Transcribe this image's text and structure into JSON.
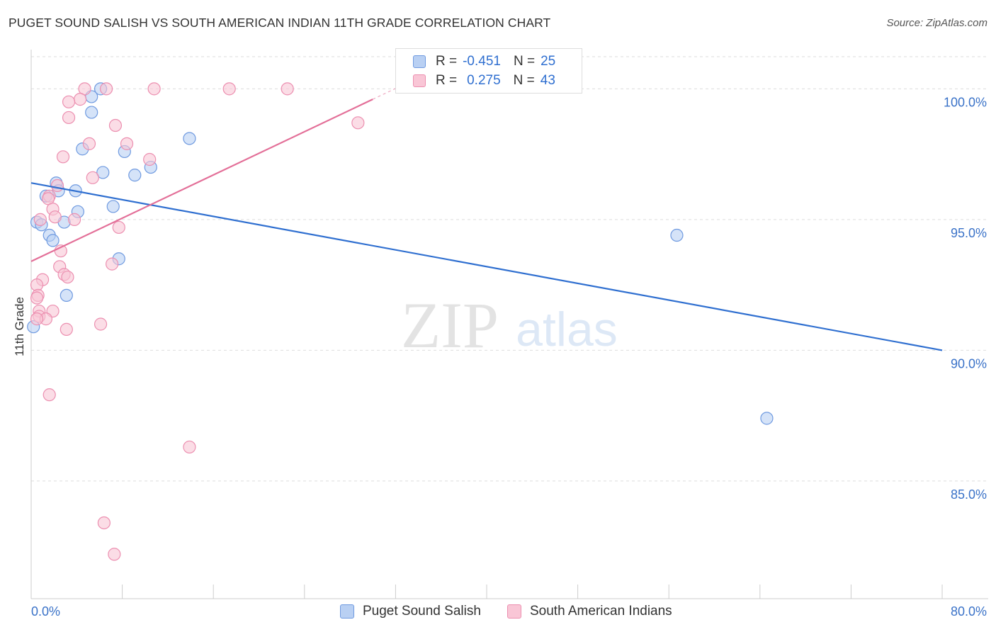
{
  "title": "PUGET SOUND SALISH VS SOUTH AMERICAN INDIAN 11TH GRADE CORRELATION CHART",
  "source": "Source: ZipAtlas.com",
  "watermark": {
    "zip": "ZIP",
    "atlas": "atlas"
  },
  "legend": {
    "rows": [
      {
        "r_label": "R =",
        "r_value": "-0.451",
        "n_label": "N =",
        "n_value": "25"
      },
      {
        "r_label": "R =",
        "r_value": "0.275",
        "n_label": "N =",
        "n_value": "43"
      }
    ]
  },
  "bottom_legend": [
    "Puget Sound Salish",
    "South American Indians"
  ],
  "colors": {
    "blue_fill": "#b9d0f3",
    "blue_stroke": "#6f9ae0",
    "blue_line": "#2f6fd0",
    "pink_fill": "#f9c6d6",
    "pink_stroke": "#ec8fb0",
    "pink_line": "#e36f98",
    "tick_label": "#3a72c8",
    "grid": "#dddddd"
  },
  "chart_data": {
    "type": "scatter",
    "title": "PUGET SOUND SALISH VS SOUTH AMERICAN INDIAN 11TH GRADE CORRELATION CHART",
    "xlabel": "",
    "ylabel": "11th Grade",
    "xlim": [
      0,
      80
    ],
    "ylim": [
      80.5,
      101.5
    ],
    "x_tick_labels": [
      "0.0%",
      "80.0%"
    ],
    "y_ticks": [
      {
        "value": 100,
        "label": "100.0%"
      },
      {
        "value": 95,
        "label": "95.0%"
      },
      {
        "value": 90,
        "label": "90.0%"
      },
      {
        "value": 85,
        "label": "85.0%"
      }
    ],
    "series": [
      {
        "name": "Puget Sound Salish",
        "color": "blue",
        "R": -0.451,
        "N": 25,
        "trend": {
          "x": [
            0,
            80
          ],
          "y": [
            96.4,
            90.0
          ]
        },
        "points": [
          [
            6.1,
            100.0
          ],
          [
            5.3,
            99.7
          ],
          [
            5.3,
            99.1
          ],
          [
            13.9,
            98.1
          ],
          [
            4.5,
            97.7
          ],
          [
            8.2,
            97.6
          ],
          [
            10.5,
            97.0
          ],
          [
            6.3,
            96.8
          ],
          [
            9.1,
            96.7
          ],
          [
            2.2,
            96.4
          ],
          [
            2.4,
            96.1
          ],
          [
            3.9,
            96.1
          ],
          [
            1.3,
            95.9
          ],
          [
            7.2,
            95.5
          ],
          [
            4.1,
            95.3
          ],
          [
            0.5,
            94.9
          ],
          [
            0.9,
            94.8
          ],
          [
            2.9,
            94.9
          ],
          [
            1.6,
            94.4
          ],
          [
            1.9,
            94.2
          ],
          [
            56.7,
            94.4
          ],
          [
            7.7,
            93.5
          ],
          [
            3.1,
            92.1
          ],
          [
            0.2,
            90.9
          ],
          [
            64.6,
            87.4
          ]
        ]
      },
      {
        "name": "South American Indians",
        "color": "pink",
        "R": 0.275,
        "N": 43,
        "trend": {
          "x": [
            0,
            30
          ],
          "y": [
            93.4,
            99.6
          ]
        },
        "points": [
          [
            4.7,
            100.0
          ],
          [
            6.6,
            100.0
          ],
          [
            10.8,
            100.0
          ],
          [
            17.4,
            100.0
          ],
          [
            22.5,
            100.0
          ],
          [
            4.3,
            99.6
          ],
          [
            3.3,
            99.5
          ],
          [
            3.3,
            98.9
          ],
          [
            7.4,
            98.6
          ],
          [
            28.7,
            98.7
          ],
          [
            8.4,
            97.9
          ],
          [
            5.1,
            97.9
          ],
          [
            2.8,
            97.4
          ],
          [
            10.4,
            97.3
          ],
          [
            5.4,
            96.6
          ],
          [
            2.3,
            96.3
          ],
          [
            1.6,
            95.9
          ],
          [
            1.5,
            95.8
          ],
          [
            1.9,
            95.4
          ],
          [
            2.1,
            95.1
          ],
          [
            3.8,
            95.0
          ],
          [
            0.8,
            95.0
          ],
          [
            7.7,
            94.7
          ],
          [
            2.6,
            93.8
          ],
          [
            7.1,
            93.3
          ],
          [
            2.5,
            93.2
          ],
          [
            2.9,
            92.9
          ],
          [
            3.2,
            92.8
          ],
          [
            1.0,
            92.7
          ],
          [
            0.5,
            92.5
          ],
          [
            0.6,
            92.1
          ],
          [
            0.5,
            92.0
          ],
          [
            0.7,
            91.5
          ],
          [
            1.9,
            91.5
          ],
          [
            0.7,
            91.3
          ],
          [
            1.3,
            91.2
          ],
          [
            6.1,
            91.0
          ],
          [
            3.1,
            90.8
          ],
          [
            1.6,
            88.3
          ],
          [
            13.9,
            86.3
          ],
          [
            6.4,
            83.4
          ],
          [
            7.3,
            82.2
          ],
          [
            0.5,
            91.2
          ]
        ]
      }
    ]
  }
}
